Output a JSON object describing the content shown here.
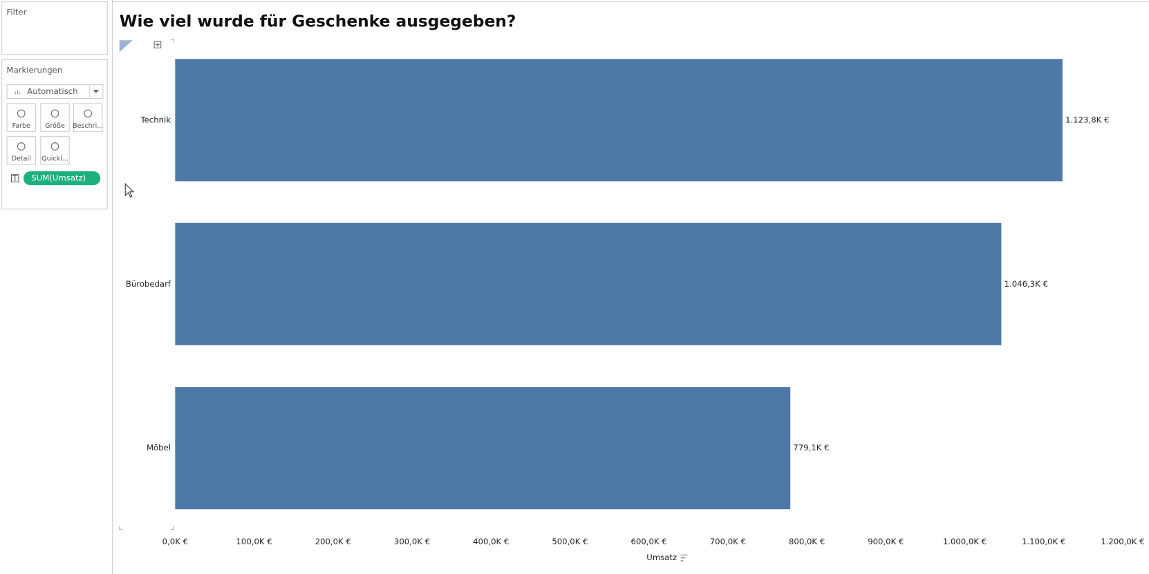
{
  "ui": {
    "filter_title": "Filter",
    "marks_title": "Markierungen",
    "mark_type": "Automatisch",
    "cards": [
      "Farbe",
      "Größe",
      "Beschri...",
      "Detail",
      "Quickl..."
    ],
    "pill": "SUM(Umsatz)"
  },
  "chart_data": {
    "type": "bar",
    "orientation": "horizontal",
    "title": "Wie viel wurde für Geschenke ausgegeben?",
    "x_label": "Umsatz",
    "categories": [
      "Technik",
      "Bürobedarf",
      "Möbel"
    ],
    "values": [
      1123.8,
      1046.3,
      779.1
    ],
    "value_labels": [
      "1.123,8K €",
      "1.046,3K €",
      "779,1K €"
    ],
    "color": "#4e79a7",
    "xlim": [
      0,
      1200
    ],
    "xticks": [
      {
        "value": 0,
        "label": "0,0K €"
      },
      {
        "value": 100,
        "label": "100,0K €"
      },
      {
        "value": 200,
        "label": "200,0K €"
      },
      {
        "value": 300,
        "label": "300,0K €"
      },
      {
        "value": 400,
        "label": "400,0K €"
      },
      {
        "value": 500,
        "label": "500,0K €"
      },
      {
        "value": 600,
        "label": "600,0K €"
      },
      {
        "value": 700,
        "label": "700,0K €"
      },
      {
        "value": 800,
        "label": "800,0K €"
      },
      {
        "value": 900,
        "label": "900,0K €"
      },
      {
        "value": 1000,
        "label": "1.000,0K €"
      },
      {
        "value": 1100,
        "label": "1.100,0K €"
      },
      {
        "value": 1200,
        "label": "1.200,0K €"
      }
    ],
    "grid": false
  }
}
